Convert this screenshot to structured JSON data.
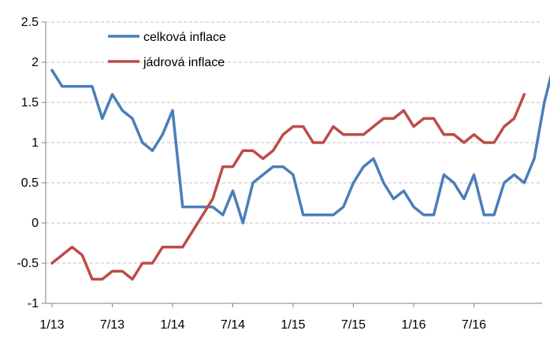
{
  "chart_data": {
    "type": "line",
    "ylim": [
      -1,
      2.5
    ],
    "yticks": [
      "2.5",
      "2",
      "1.5",
      "1",
      "0.5",
      "0",
      "-0.5",
      "-1"
    ],
    "xtick_labels": [
      "1/13",
      "7/13",
      "1/14",
      "7/14",
      "1/15",
      "7/15",
      "1/16",
      "7/16"
    ],
    "grid": true,
    "legend_position": "top-center",
    "series": [
      {
        "name": "celková inflace",
        "color": "#4a7ebb",
        "values": [
          1.9,
          1.7,
          1.7,
          1.7,
          1.7,
          1.3,
          1.6,
          1.4,
          1.3,
          1.0,
          0.9,
          1.1,
          1.4,
          0.2,
          0.2,
          0.2,
          0.2,
          0.1,
          0.4,
          0.0,
          0.5,
          0.6,
          0.7,
          0.7,
          0.6,
          0.1,
          0.1,
          0.1,
          0.1,
          0.2,
          0.5,
          0.7,
          0.8,
          0.5,
          0.3,
          0.4,
          0.2,
          0.1,
          0.1,
          0.6,
          0.5,
          0.3,
          0.6,
          0.1,
          0.1,
          0.5,
          0.6,
          0.5,
          0.8,
          1.5,
          2.0
        ]
      },
      {
        "name": "jádrová inflace",
        "color": "#be4b48",
        "values": [
          -0.5,
          -0.4,
          -0.3,
          -0.4,
          -0.7,
          -0.7,
          -0.6,
          -0.6,
          -0.7,
          -0.5,
          -0.5,
          -0.3,
          -0.3,
          -0.3,
          -0.1,
          0.1,
          0.3,
          0.7,
          0.7,
          0.9,
          0.9,
          0.8,
          0.9,
          1.1,
          1.2,
          1.2,
          1.0,
          1.0,
          1.2,
          1.1,
          1.1,
          1.1,
          1.2,
          1.3,
          1.3,
          1.4,
          1.2,
          1.3,
          1.3,
          1.1,
          1.1,
          1.0,
          1.1,
          1.0,
          1.0,
          1.2,
          1.3,
          1.6
        ]
      }
    ]
  }
}
